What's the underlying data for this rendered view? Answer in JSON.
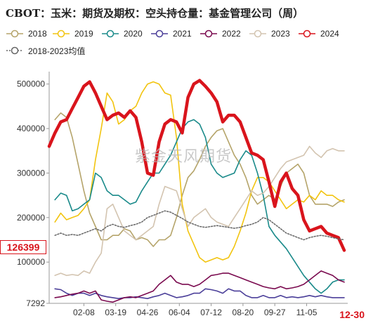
{
  "title": "CBOT：玉米：期货及期权：空头持仓量：基金管理公司（周）",
  "watermark": "紫金天风期货",
  "legend": [
    {
      "name": "2018",
      "color": "#b5a46a",
      "style": "solid"
    },
    {
      "name": "2019",
      "color": "#f2c40f",
      "style": "solid"
    },
    {
      "name": "2020",
      "color": "#1a8a8a",
      "style": "solid"
    },
    {
      "name": "2021",
      "color": "#4b3f99",
      "style": "solid"
    },
    {
      "name": "2022",
      "color": "#7a0a4f",
      "style": "solid"
    },
    {
      "name": "2023",
      "color": "#d3c4b0",
      "style": "solid"
    },
    {
      "name": "2024",
      "color": "#d9141c",
      "style": "solid"
    },
    {
      "name": "2018-2023均值",
      "color": "#666666",
      "style": "dotted"
    }
  ],
  "last_value_label": "126399",
  "last_date_label": "12-30",
  "chart_data": {
    "type": "line",
    "title": "CBOT：玉米：期货及期权：空头持仓量：基金管理公司（周）",
    "x_ticks": [
      "02-08",
      "03-19",
      "04-26",
      "06-04",
      "07-12",
      "08-20",
      "09-27",
      "11-05"
    ],
    "y_ticks": [
      7292,
      100000,
      200000,
      300000,
      400000,
      500000
    ],
    "ylim": [
      7292,
      520000
    ],
    "n_weeks": 52,
    "grid": false,
    "legend_position": "top",
    "series": [
      {
        "name": "2018",
        "values": [
          null,
          420000,
          435000,
          425000,
          380000,
          320000,
          260000,
          210000,
          180000,
          150000,
          150000,
          160000,
          160000,
          175000,
          170000,
          150000,
          155000,
          150000,
          135000,
          150000,
          150000,
          160000,
          200000,
          250000,
          290000,
          305000,
          330000,
          360000,
          380000,
          395000,
          400000,
          370000,
          340000,
          320000,
          290000,
          250000,
          230000,
          240000,
          250000,
          240000,
          270000,
          300000,
          310000,
          320000,
          300000,
          250000,
          230000,
          230000,
          230000,
          225000,
          235000,
          240000
        ]
      },
      {
        "name": "2019",
        "values": [
          null,
          190000,
          210000,
          195000,
          200000,
          205000,
          220000,
          240000,
          330000,
          400000,
          480000,
          460000,
          410000,
          420000,
          440000,
          450000,
          480000,
          500000,
          505000,
          500000,
          480000,
          475000,
          380000,
          230000,
          170000,
          140000,
          110000,
          100000,
          105000,
          110000,
          105000,
          110000,
          135000,
          170000,
          210000,
          260000,
          290000,
          290000,
          280000,
          260000,
          240000,
          220000,
          230000,
          240000,
          235000,
          250000,
          240000,
          260000,
          250000,
          250000,
          240000,
          235000
        ]
      },
      {
        "name": "2020",
        "values": [
          null,
          240000,
          255000,
          250000,
          215000,
          220000,
          230000,
          240000,
          300000,
          290000,
          260000,
          250000,
          250000,
          240000,
          230000,
          235000,
          260000,
          280000,
          300000,
          300000,
          320000,
          340000,
          370000,
          400000,
          415000,
          420000,
          410000,
          380000,
          320000,
          300000,
          290000,
          295000,
          300000,
          330000,
          350000,
          340000,
          300000,
          250000,
          180000,
          160000,
          145000,
          130000,
          110000,
          90000,
          70000,
          55000,
          40000,
          30000,
          40000,
          55000,
          60000,
          60000
        ]
      },
      {
        "name": "2021",
        "values": [
          null,
          40000,
          38000,
          30000,
          25000,
          30000,
          30000,
          25000,
          30000,
          25000,
          22000,
          20000,
          18000,
          20000,
          20000,
          22000,
          20000,
          18000,
          22000,
          25000,
          30000,
          25000,
          20000,
          22000,
          25000,
          30000,
          30000,
          40000,
          38000,
          35000,
          30000,
          40000,
          35000,
          35000,
          25000,
          20000,
          20000,
          25000,
          20000,
          20000,
          25000,
          20000,
          22000,
          20000,
          22000,
          25000,
          22000,
          25000,
          22000,
          20000,
          20000,
          20000
        ]
      },
      {
        "name": "2022",
        "values": [
          null,
          20000,
          22000,
          25000,
          28000,
          30000,
          35000,
          30000,
          35000,
          15000,
          12000,
          10000,
          15000,
          20000,
          22000,
          20000,
          25000,
          30000,
          35000,
          50000,
          60000,
          70000,
          55000,
          50000,
          50000,
          45000,
          50000,
          60000,
          70000,
          72000,
          75000,
          75000,
          70000,
          65000,
          60000,
          55000,
          50000,
          45000,
          42000,
          40000,
          45000,
          40000,
          42000,
          45000,
          50000,
          60000,
          70000,
          80000,
          75000,
          70000,
          60000,
          55000
        ]
      },
      {
        "name": "2023",
        "values": [
          null,
          70000,
          75000,
          70000,
          72000,
          70000,
          80000,
          75000,
          100000,
          120000,
          220000,
          230000,
          200000,
          170000,
          160000,
          150000,
          160000,
          170000,
          180000,
          230000,
          270000,
          265000,
          260000,
          220000,
          180000,
          200000,
          210000,
          220000,
          200000,
          190000,
          185000,
          180000,
          200000,
          220000,
          240000,
          260000,
          250000,
          255000,
          270000,
          290000,
          310000,
          325000,
          330000,
          335000,
          340000,
          360000,
          345000,
          335000,
          350000,
          355000,
          350000,
          350000
        ]
      },
      {
        "name": "2024",
        "values": [
          360000,
          390000,
          415000,
          420000,
          445000,
          470000,
          495000,
          505000,
          480000,
          450000,
          420000,
          430000,
          435000,
          425000,
          440000,
          425000,
          370000,
          300000,
          295000,
          370000,
          410000,
          420000,
          415000,
          390000,
          470000,
          500000,
          508000,
          495000,
          480000,
          460000,
          415000,
          430000,
          430000,
          415000,
          380000,
          345000,
          340000,
          330000,
          280000,
          225000,
          280000,
          300000,
          265000,
          250000,
          195000,
          170000,
          175000,
          180000,
          165000,
          160000,
          155000,
          126399
        ]
      },
      {
        "name": "2018-2023均值",
        "values": [
          null,
          160000,
          165000,
          160000,
          162000,
          160000,
          165000,
          170000,
          175000,
          170000,
          180000,
          185000,
          180000,
          178000,
          182000,
          185000,
          190000,
          200000,
          205000,
          210000,
          215000,
          212000,
          205000,
          198000,
          190000,
          185000,
          180000,
          178000,
          180000,
          182000,
          180000,
          178000,
          176000,
          178000,
          182000,
          185000,
          190000,
          200000,
          195000,
          185000,
          175000,
          165000,
          160000,
          155000,
          150000,
          155000,
          158000,
          160000,
          158000,
          155000,
          152000,
          150000
        ]
      }
    ]
  }
}
